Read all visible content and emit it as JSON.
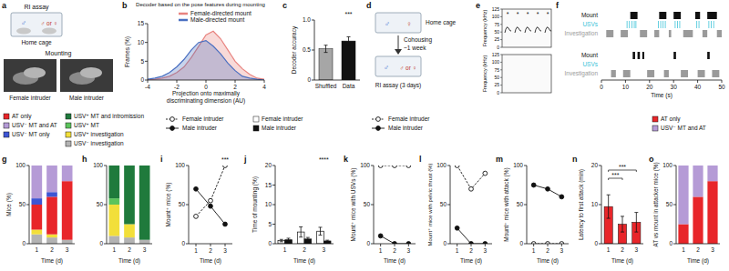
{
  "diagrams": {
    "a": {
      "panel": "a",
      "title": "RI assay",
      "cage": "Home cage",
      "resident": "♂",
      "intruder": "♂ or ♀",
      "photo_title": "Mounting",
      "photos": [
        "Female intruder",
        "Male intruder"
      ]
    },
    "d": {
      "panel": "d",
      "cage": "Home cage",
      "resident": "♂",
      "intruder": "♀",
      "step": "Cohousing",
      "duration": "~1 week",
      "assay": "RI assay (3 days)",
      "assay_resident": "♂",
      "assay_intruder": "♂ or ♀"
    },
    "e": {
      "panel": "e",
      "y_label": "Frequency (kHz)",
      "yticks": [
        0,
        25,
        50,
        75,
        100,
        125
      ],
      "markers": [
        "*",
        "*",
        "*",
        "*",
        "*"
      ]
    }
  },
  "chart_data": [
    {
      "panel": "b",
      "type": "area",
      "title": "Decoder based on the pose features during mounting",
      "x": [
        -4,
        -3.5,
        -3,
        -2.5,
        -2,
        -1.5,
        -1,
        -0.5,
        0,
        0.5,
        1,
        1.5,
        2,
        2.5,
        3,
        3.5,
        4
      ],
      "series": [
        {
          "name": "Female-directed mount",
          "color": "#e8837f",
          "values": [
            0,
            0.2,
            0.5,
            1,
            2,
            3.5,
            6,
            9,
            12,
            13,
            11,
            8,
            5,
            3,
            1.5,
            0.5,
            0.2
          ]
        },
        {
          "name": "Male-directed mount",
          "color": "#4a6fc1",
          "values": [
            0.2,
            0.5,
            1,
            2,
            3.5,
            5.5,
            8,
            10,
            10.5,
            9,
            7,
            4.5,
            2.5,
            1,
            0.5,
            0.2,
            0
          ]
        }
      ],
      "xlim": [
        -4,
        4
      ],
      "xticks": [
        -4,
        -2,
        0,
        2,
        4
      ],
      "ylim": [
        0,
        15
      ],
      "yticks": [
        0,
        5,
        10,
        15
      ],
      "x_label": "Projection onto maximally discriminating dimension (AU)",
      "y_label": "Frames (%)",
      "legend": "top"
    },
    {
      "panel": "c",
      "type": "bar",
      "categories": [
        "Shuffled",
        "Data"
      ],
      "values": [
        0.52,
        0.65
      ],
      "errors": [
        0.06,
        0.07
      ],
      "colors": [
        "#a6a6a6",
        "#111111"
      ],
      "ylim": [
        0,
        1
      ],
      "yticks": [
        0,
        0.5,
        {
          "value": 1,
          "label": "1.0"
        }
      ],
      "y_label": "Decoder accuracy",
      "annotations": [
        {
          "text": "***",
          "x": "Data"
        }
      ]
    },
    {
      "panel": "f",
      "type": "raster",
      "xlim": [
        0,
        50
      ],
      "tick_labels": false,
      "series": [
        {
          "name": "Mount",
          "color": "#111111",
          "intervals": [
            [
              12,
              15
            ],
            [
              24,
              27
            ],
            [
              30,
              33
            ],
            [
              39,
              41
            ],
            [
              44,
              48
            ]
          ]
        },
        {
          "name": "USVs",
          "color": "#3cc3d8",
          "intervals": [
            [
              10.5,
              10.8
            ],
            [
              11.5,
              11.8
            ],
            [
              12.5,
              12.8
            ],
            [
              13.5,
              13.8
            ],
            [
              14.2,
              14.5
            ],
            [
              23.5,
              23.8
            ],
            [
              24.5,
              24.8
            ],
            [
              25.5,
              25.8
            ],
            [
              26.4,
              26.7
            ],
            [
              30.5,
              30.8
            ],
            [
              31.5,
              31.8
            ],
            [
              32.4,
              32.7
            ],
            [
              39.5,
              39.8
            ],
            [
              40.4,
              40.7
            ],
            [
              44.5,
              44.8
            ],
            [
              45.5,
              45.8
            ],
            [
              46.5,
              46.8
            ]
          ]
        },
        {
          "name": "Investigation",
          "color": "#9a9a9a",
          "intervals": [
            [
              2,
              5
            ],
            [
              8,
              11
            ],
            [
              16,
              19
            ],
            [
              22,
              24
            ],
            [
              28,
              29
            ],
            [
              34,
              38
            ],
            [
              42,
              44
            ],
            [
              48,
              50
            ]
          ]
        }
      ]
    },
    {
      "type": "raster",
      "xlim": [
        0,
        50
      ],
      "xticks": [
        0,
        10,
        20,
        30,
        40,
        50
      ],
      "x_label": "Time (s)",
      "series": [
        {
          "name": "Mount",
          "color": "#111111",
          "intervals": [
            [
              13,
              14
            ],
            [
              15,
              16
            ],
            [
              17,
              17.8
            ],
            [
              30,
              31
            ],
            [
              44,
              45
            ]
          ]
        },
        {
          "name": "USVs",
          "color": "#3cc3d8",
          "intervals": []
        },
        {
          "name": "Investigation",
          "color": "#9a9a9a",
          "intervals": [
            [
              4,
              6
            ],
            [
              9,
              12
            ],
            [
              19,
              22
            ],
            [
              26,
              28
            ],
            [
              33,
              36
            ],
            [
              40,
              43
            ],
            [
              46,
              49
            ]
          ]
        }
      ]
    },
    {
      "panel": "g",
      "type": "stacked_bar",
      "stacked": true,
      "categories": [
        1,
        2,
        3
      ],
      "legend": "top",
      "series": [
        {
          "name": "USV⁻ investigation",
          "color": "#b3b3b3",
          "values": [
            12,
            8,
            5
          ]
        },
        {
          "name": "USV⁺ investigation",
          "color": "#f2df3a",
          "values": [
            6,
            4,
            0
          ]
        },
        {
          "name": "USV⁺ MT",
          "color": "#5cc45c",
          "values": [
            0,
            0,
            0
          ]
        },
        {
          "name": "USV⁺ MT and intromission",
          "color": "#1f7a3c",
          "values": [
            0,
            0,
            0
          ]
        },
        {
          "name": "AT only",
          "color": "#e8262a",
          "values": [
            32,
            48,
            75
          ]
        },
        {
          "name": "USV⁻ MT only",
          "color": "#3d55d4",
          "values": [
            8,
            6,
            0
          ]
        },
        {
          "name": "USV⁻ MT and AT",
          "color": "#b59bd6",
          "values": [
            42,
            34,
            20
          ]
        }
      ],
      "ylim": [
        0,
        100
      ],
      "yticks": [
        0,
        50,
        100
      ],
      "x_label": "Time (d)",
      "y_label": "Mice (%)"
    },
    {
      "panel": "h",
      "type": "stacked_bar",
      "stacked": true,
      "categories": [
        1,
        2,
        3
      ],
      "series": [
        {
          "name": "USV⁻ investigation",
          "color": "#b3b3b3",
          "values": [
            10,
            8,
            5
          ]
        },
        {
          "name": "USV⁺ investigation",
          "color": "#f2df3a",
          "values": [
            40,
            17,
            0
          ]
        },
        {
          "name": "USV⁺ MT",
          "color": "#5cc45c",
          "values": [
            8,
            0,
            0
          ]
        },
        {
          "name": "USV⁺ MT and intromission",
          "color": "#1f7a3c",
          "values": [
            42,
            75,
            95
          ]
        },
        {
          "name": "AT only",
          "color": "#e8262a",
          "values": [
            0,
            0,
            0
          ]
        },
        {
          "name": "USV⁻ MT only",
          "color": "#3d55d4",
          "values": [
            0,
            0,
            0
          ]
        },
        {
          "name": "USV⁻ MT and AT",
          "color": "#b59bd6",
          "values": [
            0,
            0,
            0
          ]
        }
      ],
      "ylim": [
        0,
        100
      ],
      "yticks": [
        0,
        50,
        100
      ],
      "x_label": "Time (d)"
    },
    {
      "panel": "i",
      "type": "line",
      "x": [
        1,
        2,
        3
      ],
      "xlim": [
        0.5,
        3.5
      ],
      "xticks": [
        1,
        2,
        3
      ],
      "ylim": [
        0,
        100
      ],
      "yticks": [
        0,
        50,
        100
      ],
      "x_label": "Time (d)",
      "y_label": "Mount⁺ mice (%)",
      "legend": "top",
      "series": [
        {
          "name": "Female intruder",
          "color": "#111111",
          "line_style": "dashed",
          "marker": "open",
          "values": [
            35,
            55,
            100
          ]
        },
        {
          "name": "Male intruder",
          "color": "#111111",
          "line_style": "solid",
          "marker": "filled",
          "values": [
            70,
            48,
            25
          ]
        }
      ],
      "annotations": [
        {
          "text": "***",
          "x": 3
        }
      ]
    },
    {
      "panel": "j",
      "type": "bar",
      "categories": [
        1,
        2,
        3
      ],
      "legend": "top",
      "series": [
        {
          "name": "Female intruder",
          "color": "#ffffff",
          "values": [
            0.8,
            3.0,
            3.2
          ],
          "errors": [
            0.3,
            1.3,
            1.0
          ]
        },
        {
          "name": "Male intruder",
          "color": "#111111",
          "values": [
            1.0,
            1.2,
            0.7
          ],
          "errors": [
            0.4,
            0.4,
            0.2
          ]
        }
      ],
      "ylim": [
        0,
        20
      ],
      "yticks": [
        0,
        5,
        10,
        15,
        20
      ],
      "x_label": "Time (d)",
      "y_label": "Time of mounting (%)",
      "annotations": [
        {
          "text": "****",
          "x": 3
        }
      ]
    },
    {
      "panel": "k",
      "type": "line",
      "x": [
        1,
        2,
        3
      ],
      "xlim": [
        0.5,
        3.5
      ],
      "xticks": [
        1,
        2,
        3
      ],
      "ylim": [
        0,
        100
      ],
      "yticks": [
        0,
        50,
        100
      ],
      "x_label": "Time (d)",
      "y_label": "Mount⁺ mice with USVs (%)",
      "legend": "top",
      "series": [
        {
          "name": "Female intruder",
          "color": "#111111",
          "line_style": "dashed",
          "marker": "open",
          "values": [
            100,
            100,
            100
          ]
        },
        {
          "name": "Male intruder",
          "color": "#111111",
          "line_style": "solid",
          "marker": "filled",
          "values": [
            10,
            0,
            0
          ]
        }
      ]
    },
    {
      "panel": "l",
      "type": "line",
      "x": [
        1,
        2,
        3
      ],
      "xlim": [
        0.5,
        3.5
      ],
      "xticks": [
        1,
        2,
        3
      ],
      "ylim": [
        0,
        100
      ],
      "yticks": [
        0,
        50,
        100
      ],
      "x_label": "Time (d)",
      "y_label": "Mount⁺ mice with pelvic thrust (%)",
      "series": [
        {
          "color": "#111111",
          "line_style": "dashed",
          "marker": "open",
          "values": [
            100,
            70,
            90
          ]
        },
        {
          "color": "#111111",
          "line_style": "solid",
          "marker": "filled",
          "values": [
            20,
            0,
            0
          ]
        }
      ]
    },
    {
      "panel": "m",
      "type": "line",
      "x": [
        1,
        2,
        3
      ],
      "xlim": [
        0.5,
        3.5
      ],
      "xticks": [
        1,
        2,
        3
      ],
      "ylim": [
        0,
        100
      ],
      "yticks": [
        0,
        50,
        100
      ],
      "x_label": "Time (d)",
      "y_label": "Mount⁺ mice with attack (%)",
      "series": [
        {
          "color": "#111111",
          "line_style": "dashed",
          "marker": "open",
          "values": [
            0,
            0,
            0
          ]
        },
        {
          "color": "#111111",
          "line_style": "solid",
          "marker": "filled",
          "values": [
            75,
            70,
            60
          ]
        }
      ]
    },
    {
      "panel": "n",
      "type": "bar",
      "categories": [
        1,
        2,
        3
      ],
      "values": [
        9.5,
        5,
        5.5
      ],
      "errors": [
        3,
        2,
        2.5
      ],
      "color": "#e8262a",
      "ylim": [
        0,
        20
      ],
      "yticks": [
        0,
        10,
        20
      ],
      "x_label": "Time (d)",
      "y_label": "Latency to first attack (min)",
      "annotations": [
        {
          "text": "***",
          "x": [
            1,
            2
          ]
        },
        {
          "text": "***",
          "x": [
            1,
            3
          ]
        }
      ]
    },
    {
      "panel": "o",
      "type": "stacked_bar",
      "stacked": true,
      "categories": [
        1,
        2,
        3
      ],
      "legend": "top",
      "series": [
        {
          "name": "AT only",
          "color": "#e8262a",
          "values": [
            25,
            60,
            80
          ]
        },
        {
          "name": "USV⁻ MT and AT",
          "color": "#b59bd6",
          "values": [
            75,
            40,
            20
          ]
        }
      ],
      "ylim": [
        0,
        100
      ],
      "yticks": [
        0,
        50,
        100
      ],
      "x_label": "Time (d)",
      "y_label": "AT vs mount in attacker mice (%)"
    }
  ]
}
